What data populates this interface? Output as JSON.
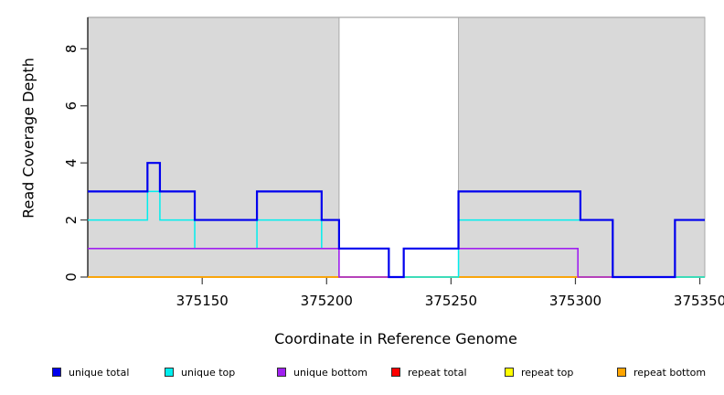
{
  "chart_data": {
    "type": "line",
    "subtype": "step",
    "title": "",
    "xlabel": "Coordinate in Reference Genome",
    "ylabel": "Read Coverage Depth",
    "xlim": [
      375104,
      375352
    ],
    "ylim": [
      0,
      9.1
    ],
    "x_ticks": [
      375150,
      375200,
      375250,
      375300,
      375350
    ],
    "y_ticks": [
      0,
      2,
      4,
      6,
      8
    ],
    "grid": false,
    "legend_position": "bottom",
    "background_shading": {
      "fill": "#d9d9d9",
      "border": "#a8a8a8",
      "regions": [
        [
          375104,
          375205
        ],
        [
          375253,
          375352
        ]
      ]
    },
    "series": [
      {
        "name": "unique total",
        "color": "#0000ee",
        "points": [
          [
            375104,
            3
          ],
          [
            375128,
            4
          ],
          [
            375133,
            3
          ],
          [
            375147,
            2
          ],
          [
            375172,
            3
          ],
          [
            375198,
            2
          ],
          [
            375205,
            1
          ],
          [
            375225,
            0
          ],
          [
            375231,
            1
          ],
          [
            375253,
            3
          ],
          [
            375302,
            2
          ],
          [
            375315,
            0
          ],
          [
            375340,
            2
          ],
          [
            375352,
            2
          ]
        ]
      },
      {
        "name": "unique top",
        "color": "#00eeee",
        "points": [
          [
            375104,
            2
          ],
          [
            375128,
            3
          ],
          [
            375133,
            2
          ],
          [
            375147,
            1
          ],
          [
            375172,
            2
          ],
          [
            375198,
            1
          ],
          [
            375225,
            0
          ],
          [
            375253,
            2
          ],
          [
            375315,
            0
          ],
          [
            375352,
            0
          ]
        ]
      },
      {
        "name": "unique bottom",
        "color": "#a020f0",
        "points": [
          [
            375104,
            1
          ],
          [
            375205,
            0
          ],
          [
            375231,
            1
          ],
          [
            375301,
            0
          ],
          [
            375340,
            2
          ],
          [
            375352,
            2
          ]
        ]
      },
      {
        "name": "repeat total",
        "color": "#ff0000",
        "points": [
          [
            375104,
            0
          ],
          [
            375352,
            0
          ]
        ]
      },
      {
        "name": "repeat top",
        "color": "#ffff00",
        "points": [
          [
            375104,
            0
          ],
          [
            375352,
            0
          ]
        ]
      },
      {
        "name": "repeat bottom",
        "color": "#ffa500",
        "points": [
          [
            375104,
            0
          ],
          [
            375352,
            0
          ]
        ]
      }
    ]
  }
}
